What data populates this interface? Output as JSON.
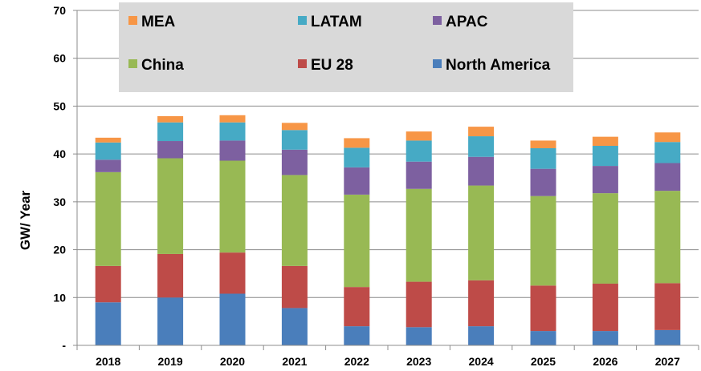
{
  "chart_data": {
    "type": "bar",
    "stacked": true,
    "categories": [
      "2018",
      "2019",
      "2020",
      "2021",
      "2022",
      "2023",
      "2024",
      "2025",
      "2026",
      "2027"
    ],
    "ylabel": "GW/ Year",
    "ylim": [
      0,
      70
    ],
    "yticks": [
      0,
      10,
      20,
      30,
      40,
      50,
      60,
      70
    ],
    "ytick_labels": [
      "-",
      "10",
      "20",
      "30",
      "40",
      "50",
      "60",
      "70"
    ],
    "grid": "horizontal",
    "legend_position": "top",
    "series": [
      {
        "name": "North America",
        "color": "#4a7ebb",
        "values": [
          9.0,
          10.0,
          10.8,
          7.8,
          4.0,
          3.8,
          4.0,
          3.0,
          3.0,
          3.2
        ]
      },
      {
        "name": "EU 28",
        "color": "#be4b48",
        "values": [
          7.6,
          9.1,
          8.6,
          8.8,
          8.2,
          9.5,
          9.6,
          9.5,
          9.9,
          9.8
        ]
      },
      {
        "name": "China",
        "color": "#98b954",
        "values": [
          19.6,
          20.0,
          19.2,
          19.0,
          19.3,
          19.4,
          19.8,
          18.7,
          18.9,
          19.3
        ]
      },
      {
        "name": "APAC",
        "color": "#7d60a0",
        "values": [
          2.6,
          3.6,
          4.2,
          5.3,
          5.7,
          5.7,
          6.0,
          5.7,
          5.7,
          5.8
        ]
      },
      {
        "name": "LATAM",
        "color": "#46aac5",
        "values": [
          3.6,
          3.9,
          3.8,
          4.1,
          4.1,
          4.4,
          4.3,
          4.3,
          4.2,
          4.4
        ]
      },
      {
        "name": "MEA",
        "color": "#f79646",
        "values": [
          1.0,
          1.3,
          1.5,
          1.5,
          2.0,
          1.9,
          2.0,
          1.6,
          1.9,
          2.0
        ]
      }
    ],
    "legend_order": [
      "MEA",
      "LATAM",
      "APAC",
      "China",
      "EU 28",
      "North America"
    ]
  }
}
